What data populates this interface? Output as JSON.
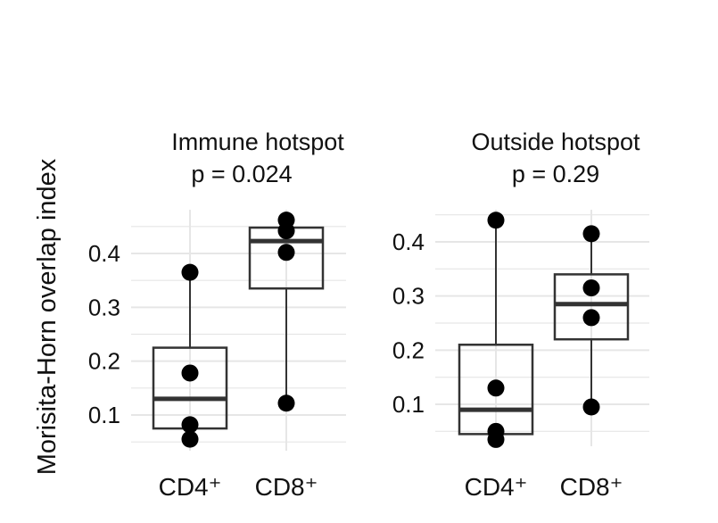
{
  "figure": {
    "ylabel": "Morisita-Horn overlap index"
  },
  "colors": {
    "box": "#333333",
    "point": "#000000",
    "grid": "#e6e6e6",
    "text": "#111111"
  },
  "chart_data": [
    {
      "type": "box",
      "title": "Immune hotspot",
      "subtitle": "p = 0.024",
      "categories": [
        "CD4⁺",
        "CD8⁺"
      ],
      "ylim": [
        0.03,
        0.48
      ],
      "yticks": [
        0.1,
        0.2,
        0.3,
        0.4
      ],
      "ytick_labels": [
        "0.1",
        "0.2",
        "0.3",
        "0.4"
      ],
      "grid": true,
      "boxes": [
        {
          "category": "CD4⁺",
          "q1": 0.075,
          "median": 0.13,
          "q3": 0.225,
          "whisker_low": 0.055,
          "whisker_high": 0.365,
          "points": [
            0.365,
            0.178,
            0.082,
            0.055
          ]
        },
        {
          "category": "CD8⁺",
          "q1": 0.335,
          "median": 0.423,
          "q3": 0.448,
          "whisker_low": 0.122,
          "whisker_high": 0.462,
          "points": [
            0.462,
            0.442,
            0.402,
            0.122
          ]
        }
      ]
    },
    {
      "type": "box",
      "title": "Outside hotspot",
      "subtitle": "p = 0.29",
      "categories": [
        "CD4⁺",
        "CD8⁺"
      ],
      "ylim": [
        0.02,
        0.47
      ],
      "yticks": [
        0.1,
        0.2,
        0.3,
        0.4
      ],
      "ytick_labels": [
        "0.1",
        "0.2",
        "0.3",
        "0.4"
      ],
      "grid": true,
      "boxes": [
        {
          "category": "CD4⁺",
          "q1": 0.045,
          "median": 0.09,
          "q3": 0.21,
          "whisker_low": 0.035,
          "whisker_high": 0.44,
          "points": [
            0.44,
            0.13,
            0.05,
            0.035
          ]
        },
        {
          "category": "CD8⁺",
          "q1": 0.22,
          "median": 0.285,
          "q3": 0.34,
          "whisker_low": 0.095,
          "whisker_high": 0.415,
          "points": [
            0.415,
            0.315,
            0.26,
            0.095
          ]
        }
      ]
    }
  ]
}
